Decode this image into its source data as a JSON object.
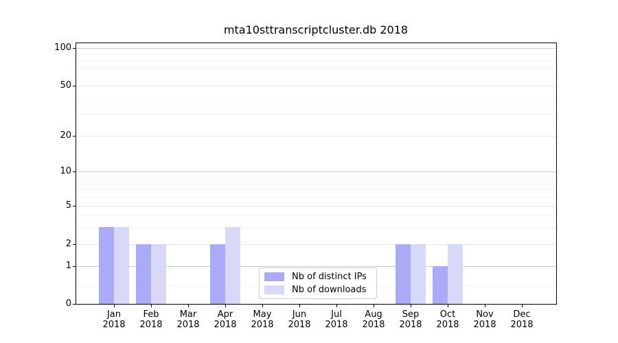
{
  "chart_data": {
    "type": "bar",
    "title": "mta10sttranscriptcluster.db 2018",
    "categories": [
      "Jan 2018",
      "Feb 2018",
      "Mar 2018",
      "Apr 2018",
      "May 2018",
      "Jun 2018",
      "Jul 2018",
      "Aug 2018",
      "Sep 2018",
      "Oct 2018",
      "Nov 2018",
      "Dec 2018"
    ],
    "series": [
      {
        "name": "Nb of distinct IPs",
        "color": "#aaaaf8",
        "values": [
          3,
          2,
          0,
          2,
          0,
          0,
          0,
          0,
          2,
          1,
          0,
          0
        ]
      },
      {
        "name": "Nb of downloads",
        "color": "#d8d8f8",
        "values": [
          3,
          2,
          0,
          3,
          0,
          0,
          0,
          0,
          2,
          2,
          0,
          0
        ]
      }
    ],
    "xlabel": "",
    "ylabel": "",
    "yscale": "log-like (0,1,2,5,10,20,50,100)",
    "ylim": [
      0,
      110
    ],
    "yticks_labeled": [
      100,
      50,
      20,
      10,
      5,
      2,
      1,
      0
    ],
    "ygrid_major": [
      100,
      10,
      1
    ],
    "ygrid_mid": [
      50,
      20,
      5,
      2
    ],
    "ygrid_minor": [
      90,
      80,
      70,
      60,
      40,
      30,
      9,
      8,
      7,
      6,
      4,
      3,
      0.5
    ],
    "grid": "horizontal",
    "legend_position": "inside-bottom-center",
    "colors": {
      "grid_major": "#c9c9c9",
      "grid_mid": "#e7e7e7",
      "grid_minor": "#f3f3f3",
      "axis": "#000000",
      "legend_border": "#cccccc"
    }
  }
}
